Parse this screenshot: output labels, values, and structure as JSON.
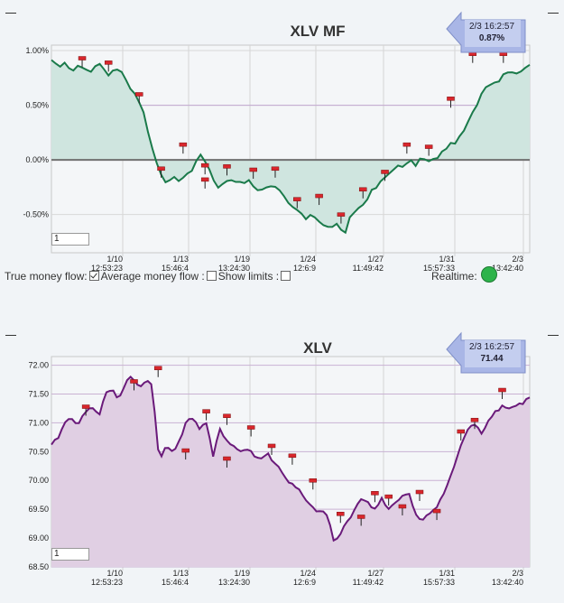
{
  "controls": {
    "true_money_flow": "True money flow:",
    "average_money_flow": "Average money flow :",
    "show_limits": "Show limits :",
    "realtime": "Realtime:",
    "true_money_flow_checked": true,
    "average_money_flow_checked": false,
    "show_limits_checked": false,
    "realtime_status_color": "#2db34a"
  },
  "chart_data": [
    {
      "type": "area",
      "title": "XLV MF",
      "ylabel": "",
      "ylim": [
        -0.85,
        1.05
      ],
      "yticks": [
        "1.00%",
        "0.50%",
        "0.00%",
        "-0.50%"
      ],
      "ytick_values": [
        1.0,
        0.5,
        0.0,
        -0.5
      ],
      "xticks": [
        {
          "date": "1/10",
          "time": "12:53:23"
        },
        {
          "date": "1/13",
          "time": "15:46:4"
        },
        {
          "date": "1/19",
          "time": "13:24:30"
        },
        {
          "date": "1/24",
          "time": "12:6:9"
        },
        {
          "date": "1/27",
          "time": "11:49:42"
        },
        {
          "date": "1/31",
          "time": "15:57:33"
        },
        {
          "date": "2/3",
          "time": "13:42:40"
        }
      ],
      "reference_lines": [
        0.5,
        0.0
      ],
      "zoom_value": "1",
      "callout": {
        "time": "2/3 16:2:57",
        "value": "0.87%"
      },
      "colors": {
        "line": "#1a7a4a",
        "fill": "#cfe5df",
        "zero_line": "#707070",
        "ref_line": "#c3a8d1",
        "marker": "#d9262c"
      },
      "values": [
        0.9,
        0.85,
        0.9,
        0.8,
        0.87,
        0.84,
        0.8,
        0.88,
        0.85,
        0.78,
        0.84,
        0.82,
        0.68,
        0.62,
        0.52,
        0.3,
        0.05,
        -0.1,
        -0.22,
        -0.15,
        -0.2,
        -0.12,
        -0.1,
        0.05,
        0.0,
        -0.12,
        -0.28,
        -0.2,
        -0.18,
        -0.2,
        -0.22,
        -0.18,
        -0.26,
        -0.28,
        -0.22,
        -0.25,
        -0.3,
        -0.4,
        -0.45,
        -0.48,
        -0.55,
        -0.5,
        -0.56,
        -0.6,
        -0.62,
        -0.58,
        -0.7,
        -0.5,
        -0.45,
        -0.4,
        -0.3,
        -0.25,
        -0.18,
        -0.12,
        -0.05,
        -0.08,
        0.0,
        -0.05,
        0.02,
        -0.02,
        0.0,
        0.05,
        0.12,
        0.15,
        0.2,
        0.3,
        0.42,
        0.55,
        0.68,
        0.7,
        0.72,
        0.8,
        0.82,
        0.78,
        0.85,
        0.87
      ],
      "markers": [
        {
          "x": 7,
          "y": 0.93
        },
        {
          "x": 13,
          "y": 0.89
        },
        {
          "x": 20,
          "y": 0.6
        },
        {
          "x": 25,
          "y": -0.08
        },
        {
          "x": 30,
          "y": 0.14
        },
        {
          "x": 35,
          "y": -0.05
        },
        {
          "x": 35,
          "y": -0.18
        },
        {
          "x": 40,
          "y": -0.06
        },
        {
          "x": 46,
          "y": -0.09
        },
        {
          "x": 51,
          "y": -0.08
        },
        {
          "x": 56,
          "y": -0.36
        },
        {
          "x": 61,
          "y": -0.33
        },
        {
          "x": 66,
          "y": -0.5
        },
        {
          "x": 71,
          "y": -0.27
        },
        {
          "x": 76,
          "y": -0.11
        },
        {
          "x": 81,
          "y": 0.14
        },
        {
          "x": 86,
          "y": 0.12
        },
        {
          "x": 91,
          "y": 0.56
        },
        {
          "x": 96,
          "y": 0.97
        },
        {
          "x": 103,
          "y": 0.97
        }
      ],
      "n_points": 110
    },
    {
      "type": "area",
      "title": "XLV",
      "ylabel": "",
      "ylim": [
        68.5,
        72.15
      ],
      "yticks": [
        "72.00",
        "71.50",
        "71.00",
        "70.50",
        "70.00",
        "69.50",
        "69.00",
        "68.50"
      ],
      "ytick_values": [
        72.0,
        71.5,
        71.0,
        70.5,
        70.0,
        69.5,
        69.0,
        68.5
      ],
      "xticks": [
        {
          "date": "1/10",
          "time": "12:53:23"
        },
        {
          "date": "1/13",
          "time": "15:46:4"
        },
        {
          "date": "1/19",
          "time": "13:24:30"
        },
        {
          "date": "1/24",
          "time": "12:6:9"
        },
        {
          "date": "1/27",
          "time": "11:49:42"
        },
        {
          "date": "1/31",
          "time": "15:57:33"
        },
        {
          "date": "2/3",
          "time": "13:42:40"
        }
      ],
      "zoom_value": "1",
      "callout": {
        "time": "2/3 16:2:57",
        "value": "71.44"
      },
      "colors": {
        "line": "#6a1a7a",
        "fill": "#e0cfe3",
        "grid": "#c9b2d3",
        "marker": "#d9262c"
      },
      "values": [
        70.6,
        70.75,
        71.0,
        71.1,
        70.95,
        71.2,
        71.3,
        71.1,
        71.5,
        71.6,
        71.4,
        71.7,
        71.8,
        71.6,
        71.75,
        71.65,
        70.3,
        70.6,
        70.5,
        70.7,
        71.0,
        71.1,
        70.9,
        71.0,
        70.4,
        70.9,
        70.7,
        70.6,
        70.5,
        70.55,
        70.45,
        70.35,
        70.5,
        70.3,
        70.2,
        70.0,
        69.9,
        69.8,
        69.6,
        69.5,
        69.45,
        69.4,
        68.9,
        69.1,
        69.3,
        69.5,
        69.7,
        69.6,
        69.5,
        69.7,
        69.5,
        69.6,
        69.7,
        69.8,
        69.4,
        69.3,
        69.45,
        69.5,
        69.7,
        70.0,
        70.3,
        70.7,
        70.9,
        71.0,
        70.8,
        71.1,
        71.2,
        71.3,
        71.25,
        71.3,
        71.35,
        71.44
      ],
      "markers": [
        {
          "x": 10,
          "y": 71.28
        },
        {
          "x": 24,
          "y": 71.72
        },
        {
          "x": 31,
          "y": 71.95
        },
        {
          "x": 39,
          "y": 70.52
        },
        {
          "x": 45,
          "y": 71.2
        },
        {
          "x": 51,
          "y": 71.12
        },
        {
          "x": 51,
          "y": 70.38
        },
        {
          "x": 58,
          "y": 70.92
        },
        {
          "x": 64,
          "y": 70.6
        },
        {
          "x": 70,
          "y": 70.43
        },
        {
          "x": 76,
          "y": 70.0
        },
        {
          "x": 84,
          "y": 69.42
        },
        {
          "x": 90,
          "y": 69.37
        },
        {
          "x": 94,
          "y": 69.78
        },
        {
          "x": 98,
          "y": 69.72
        },
        {
          "x": 102,
          "y": 69.55
        },
        {
          "x": 107,
          "y": 69.8
        },
        {
          "x": 112,
          "y": 69.47
        },
        {
          "x": 119,
          "y": 70.85
        },
        {
          "x": 123,
          "y": 71.05
        },
        {
          "x": 131,
          "y": 71.57
        }
      ],
      "n_points": 140
    }
  ]
}
